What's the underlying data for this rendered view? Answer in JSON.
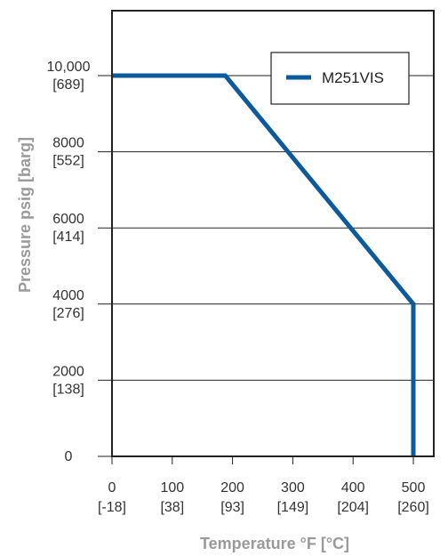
{
  "chart_data": {
    "type": "line",
    "xlabel": "Temperature °F [°C]",
    "ylabel": "Pressure psig [barg]",
    "xlim": [
      0,
      540
    ],
    "ylim": [
      0,
      12000
    ],
    "grid": "horizontal",
    "legend_position": "top-right",
    "x_ticks": [
      {
        "value": 0,
        "label": "0",
        "sublabel": "[-18]"
      },
      {
        "value": 100,
        "label": "100",
        "sublabel": "[38]"
      },
      {
        "value": 200,
        "label": "200",
        "sublabel": "[93]"
      },
      {
        "value": 300,
        "label": "300",
        "sublabel": "[149]"
      },
      {
        "value": 400,
        "label": "400",
        "sublabel": "[204]"
      },
      {
        "value": 500,
        "label": "500",
        "sublabel": "[260]"
      }
    ],
    "y_ticks": [
      {
        "value": 0,
        "label": "0",
        "sublabel": ""
      },
      {
        "value": 2000,
        "label": "2000",
        "sublabel": "[138]"
      },
      {
        "value": 4000,
        "label": "4000",
        "sublabel": "[276]"
      },
      {
        "value": 6000,
        "label": "6000",
        "sublabel": "[414]"
      },
      {
        "value": 8000,
        "label": "8000",
        "sublabel": "[552]"
      },
      {
        "value": 10000,
        "label": "10,000",
        "sublabel": "[689]"
      }
    ],
    "series": [
      {
        "name": "M251VIS",
        "color": "#0a5a9c",
        "points": [
          {
            "x": 0,
            "y": 10000
          },
          {
            "x": 188,
            "y": 10000
          },
          {
            "x": 500,
            "y": 4000
          },
          {
            "x": 500,
            "y": 0
          }
        ]
      }
    ]
  }
}
